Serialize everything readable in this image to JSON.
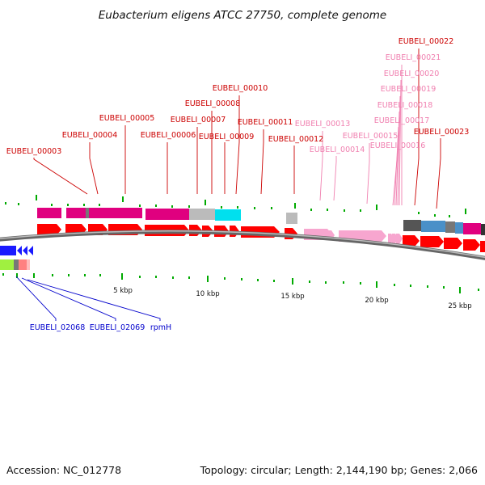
{
  "title": "Eubacterium eligens ATCC 27750, complete genome",
  "footer": {
    "accession": "Accession: NC_012778",
    "summary": "Topology: circular; Length: 2,144,190 bp; Genes: 2,066"
  },
  "colors": {
    "label_red": "#cc0000",
    "label_pink": "#f080b0",
    "label_blue": "#0000cc",
    "cds_red": "#ff0000",
    "cds_pink": "#f7a6cf",
    "cds_blue": "#1a1aff",
    "magenta": "#e0007f",
    "gray": "#bbbbbb",
    "cyan": "#00e0ee",
    "dark_gray": "#555555",
    "steel_blue": "#4a90c8",
    "lime": "#a0f040",
    "salmon": "#ff8080",
    "tick_green": "#00aa00"
  },
  "scale_ticks": [
    "5 kbp",
    "10 kbp",
    "15 kbp",
    "20 kbp",
    "25 kbp"
  ],
  "genes_top": [
    {
      "name": "EUBELI_00003",
      "style": "red"
    },
    {
      "name": "EUBELI_00004",
      "style": "red"
    },
    {
      "name": "EUBELI_00005",
      "style": "red"
    },
    {
      "name": "EUBELI_00006",
      "style": "red"
    },
    {
      "name": "EUBELI_00007",
      "style": "red"
    },
    {
      "name": "EUBELI_00008",
      "style": "red"
    },
    {
      "name": "EUBELI_00009",
      "style": "red"
    },
    {
      "name": "EUBELI_00010",
      "style": "red"
    },
    {
      "name": "EUBELI_00011",
      "style": "red"
    },
    {
      "name": "EUBELI_00012",
      "style": "red"
    },
    {
      "name": "EUBELI_00013",
      "style": "pink"
    },
    {
      "name": "EUBELI_00014",
      "style": "pink"
    },
    {
      "name": "EUBELI_00015",
      "style": "pink"
    },
    {
      "name": "EUBELI_00016",
      "style": "pink"
    },
    {
      "name": "EUBELI_00017",
      "style": "pink"
    },
    {
      "name": "EUBELI_00018",
      "style": "pink"
    },
    {
      "name": "EUBELI_00019",
      "style": "pink"
    },
    {
      "name": "EUBELI_00020",
      "style": "pink"
    },
    {
      "name": "EUBELI_00021",
      "style": "pink"
    },
    {
      "name": "EUBELI_00022",
      "style": "red"
    },
    {
      "name": "EUBELI_00023",
      "style": "red"
    }
  ],
  "genes_bottom": [
    {
      "name": "EUBELI_02068",
      "style": "blue"
    },
    {
      "name": "EUBELI_02069",
      "style": "blue"
    },
    {
      "name": "rpmH",
      "style": "blue"
    }
  ]
}
